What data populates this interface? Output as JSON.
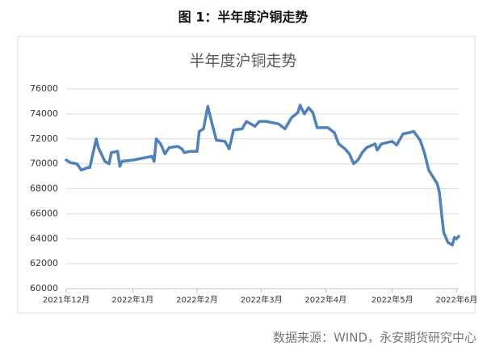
{
  "caption": "图 1：半年度沪铜走势",
  "source": "数据来源：WIND，永安期货研究中心",
  "chart_data": {
    "type": "line",
    "title": "半年度沪铜走势",
    "color": "#4f81bd",
    "x": [
      0,
      2,
      5,
      7,
      10,
      11,
      14,
      15,
      18,
      20,
      21,
      24,
      25,
      26,
      31,
      37,
      40,
      41,
      42,
      44,
      46,
      48,
      52,
      54,
      55,
      58,
      61,
      62,
      64,
      66,
      68,
      70,
      74,
      76,
      78,
      82,
      84,
      88,
      90,
      93,
      99,
      102,
      105,
      108,
      109,
      111,
      113,
      115,
      117,
      122,
      125,
      127,
      130,
      132,
      134,
      136,
      138,
      140,
      144,
      145,
      147,
      152,
      154,
      157,
      160,
      162,
      165,
      167,
      169,
      173,
      174,
      175,
      176,
      178,
      180,
      181,
      182,
      183
    ],
    "values": [
      70300,
      70100,
      70000,
      69500,
      69700,
      69700,
      72000,
      71300,
      70200,
      70000,
      70900,
      71000,
      69800,
      70200,
      70300,
      70500,
      70600,
      70200,
      72000,
      71600,
      70800,
      71300,
      71400,
      71200,
      70900,
      71000,
      71000,
      72600,
      72800,
      74600,
      73200,
      71900,
      71800,
      71200,
      72700,
      72800,
      73400,
      73000,
      73400,
      73400,
      73200,
      72800,
      73700,
      74100,
      74700,
      74000,
      74500,
      74100,
      72900,
      72900,
      72500,
      71600,
      71200,
      70800,
      70000,
      70300,
      70900,
      71300,
      71600,
      71100,
      71600,
      71800,
      71500,
      72400,
      72500,
      72600,
      71900,
      70900,
      69500,
      68400,
      67700,
      66000,
      64500,
      63700,
      63500,
      64100,
      64000,
      64200
    ],
    "xlim": [
      0,
      183
    ],
    "xticks": [
      {
        "value": 0,
        "label": "2021年12月"
      },
      {
        "value": 31,
        "label": "2022年1月"
      },
      {
        "value": 61,
        "label": "2022年2月"
      },
      {
        "value": 91,
        "label": "2022年3月"
      },
      {
        "value": 121,
        "label": "2022年4月"
      },
      {
        "value": 152,
        "label": "2022年5月"
      },
      {
        "value": 182,
        "label": "2022年6月"
      }
    ],
    "ylim": [
      60000,
      76000
    ],
    "yticks": [
      60000,
      62000,
      64000,
      66000,
      68000,
      70000,
      72000,
      74000,
      76000
    ],
    "grid": true
  }
}
